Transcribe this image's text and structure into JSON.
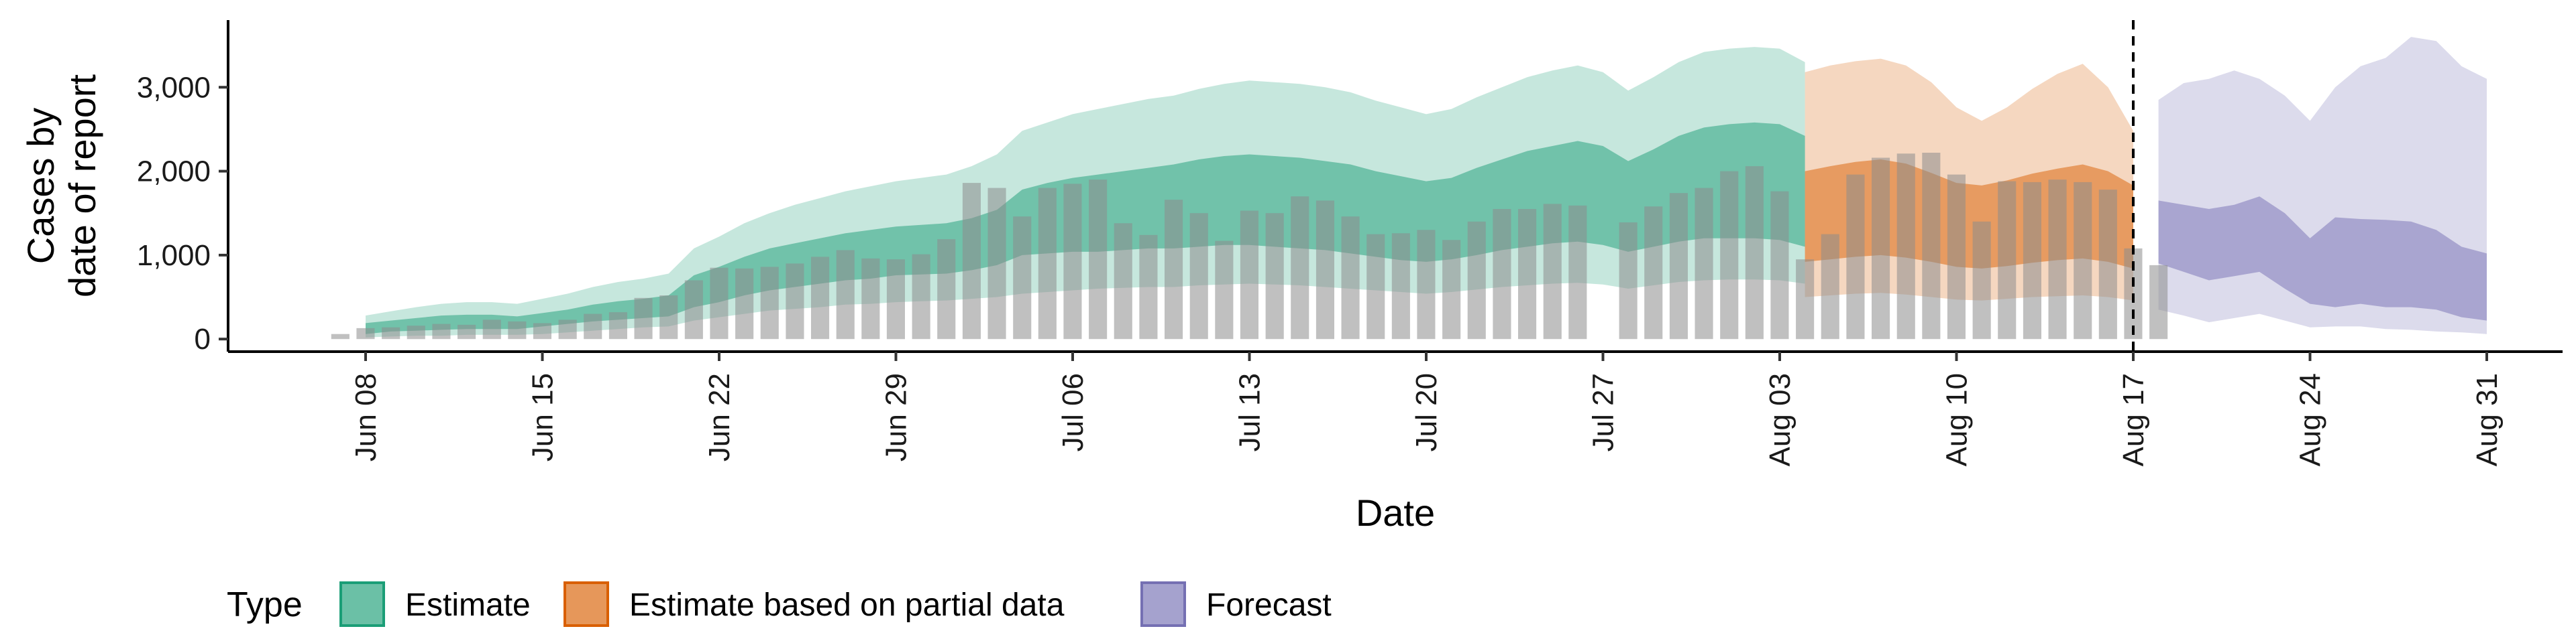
{
  "chart_data": {
    "type": "area",
    "title": "",
    "xlabel": "Date",
    "ylabel_lines": [
      "Cases by",
      "date of report"
    ],
    "x_tick_labels": [
      "Jun 08",
      "Jun 15",
      "Jun 22",
      "Jun 29",
      "Jul 06",
      "Jul 13",
      "Jul 20",
      "Jul 27",
      "Aug 03",
      "Aug 10",
      "Aug 17",
      "Aug 24",
      "Aug 31"
    ],
    "x_tick_day_index": [
      0,
      7,
      14,
      21,
      28,
      35,
      42,
      49,
      56,
      63,
      70,
      77,
      84
    ],
    "y_ticks": [
      0,
      1000,
      2000,
      3000
    ],
    "y_tick_labels": [
      "0",
      "1,000",
      "2,000",
      "3,000"
    ],
    "ylim": [
      -150,
      3800
    ],
    "vline_label_date": "Aug 17",
    "legend": {
      "title": "Type",
      "placement": "bottom",
      "entries": [
        {
          "label": "Estimate",
          "color": "#1b9e77"
        },
        {
          "label": "Estimate based on partial data",
          "color": "#d95f02"
        },
        {
          "label": "Forecast",
          "color": "#7570b3"
        }
      ]
    },
    "reported_cases": {
      "start_date": "Jun 07",
      "values": [
        60,
        130,
        140,
        160,
        180,
        170,
        230,
        210,
        190,
        230,
        300,
        320,
        490,
        520,
        700,
        850,
        840,
        860,
        900,
        980,
        1060,
        960,
        950,
        1010,
        1190,
        1860,
        1800,
        1460,
        1800,
        1850,
        1900,
        1380,
        1240,
        1660,
        1500,
        1170,
        1530,
        1500,
        1700,
        1650,
        1460,
        1250,
        1260,
        1300,
        1180,
        1400,
        1550,
        1550,
        1610,
        1590,
        0,
        1390,
        1580,
        1740,
        1800,
        2000,
        2060,
        1760,
        950,
        1250,
        1960,
        2160,
        2210,
        2220,
        1960,
        1400,
        1880,
        1870,
        1900,
        1870,
        1780,
        1080,
        880
      ]
    },
    "series": [
      {
        "name": "Estimate",
        "color": "#1b9e77",
        "start_date": "Jun 08",
        "median": [
          130,
          150,
          170,
          190,
          200,
          200,
          180,
          220,
          250,
          290,
          310,
          330,
          350,
          560,
          640,
          750,
          820,
          860,
          900,
          940,
          970,
          1010,
          1020,
          1040,
          1110,
          1200,
          1400,
          1460,
          1510,
          1520,
          1560,
          1600,
          1620,
          1680,
          1700,
          1720,
          1700,
          1680,
          1640,
          1600,
          1540,
          1480,
          1420,
          1460,
          1560,
          1640,
          1720,
          1780,
          1820,
          1760,
          1600,
          1720,
          1860,
          1950,
          1990,
          2000,
          1980,
          1860
        ],
        "band50_low": [
          60,
          90,
          100,
          110,
          120,
          120,
          120,
          150,
          180,
          210,
          230,
          250,
          270,
          380,
          440,
          520,
          580,
          620,
          660,
          700,
          720,
          760,
          770,
          780,
          820,
          880,
          1000,
          1020,
          1040,
          1040,
          1060,
          1080,
          1080,
          1100,
          1120,
          1120,
          1100,
          1080,
          1060,
          1020,
          980,
          940,
          920,
          950,
          1000,
          1060,
          1100,
          1140,
          1160,
          1120,
          1040,
          1100,
          1160,
          1200,
          1200,
          1200,
          1180,
          1100
        ],
        "band90_low": [
          20,
          30,
          40,
          40,
          50,
          50,
          50,
          60,
          80,
          100,
          120,
          140,
          150,
          220,
          260,
          300,
          340,
          360,
          380,
          410,
          420,
          440,
          450,
          460,
          480,
          500,
          540,
          560,
          580,
          600,
          610,
          620,
          620,
          640,
          650,
          660,
          650,
          640,
          620,
          600,
          580,
          560,
          540,
          560,
          590,
          620,
          640,
          660,
          670,
          650,
          600,
          640,
          680,
          700,
          710,
          710,
          700,
          660
        ],
        "band50_high": [
          190,
          220,
          250,
          280,
          290,
          290,
          270,
          310,
          350,
          410,
          450,
          480,
          520,
          760,
          860,
          980,
          1080,
          1140,
          1200,
          1260,
          1300,
          1340,
          1360,
          1380,
          1440,
          1540,
          1780,
          1860,
          1920,
          1960,
          2000,
          2040,
          2080,
          2140,
          2180,
          2200,
          2180,
          2160,
          2120,
          2080,
          2000,
          1940,
          1880,
          1920,
          2040,
          2140,
          2240,
          2300,
          2360,
          2300,
          2120,
          2260,
          2420,
          2520,
          2560,
          2580,
          2560,
          2420
        ],
        "band90_high": [
          280,
          330,
          380,
          420,
          440,
          440,
          420,
          480,
          540,
          620,
          680,
          720,
          780,
          1080,
          1220,
          1380,
          1500,
          1600,
          1680,
          1760,
          1820,
          1880,
          1920,
          1960,
          2060,
          2200,
          2480,
          2580,
          2680,
          2740,
          2800,
          2860,
          2900,
          2980,
          3040,
          3080,
          3060,
          3040,
          3000,
          2940,
          2840,
          2760,
          2680,
          2740,
          2880,
          3000,
          3120,
          3200,
          3260,
          3180,
          2960,
          3120,
          3300,
          3420,
          3460,
          3480,
          3460,
          3300
        ]
      },
      {
        "name": "Estimate based on partial data",
        "color": "#d95f02",
        "start_date": "Aug 04",
        "median": [
          1400,
          1440,
          1480,
          1500,
          1460,
          1380,
          1300,
          1280,
          1320,
          1380,
          1420,
          1460,
          1400,
          1280
        ],
        "band50_low": [
          920,
          950,
          980,
          1000,
          970,
          920,
          860,
          840,
          870,
          910,
          940,
          960,
          920,
          840
        ],
        "band90_low": [
          500,
          520,
          540,
          550,
          530,
          500,
          470,
          460,
          480,
          500,
          510,
          520,
          500,
          460
        ],
        "band50_high": [
          2000,
          2060,
          2110,
          2140,
          2090,
          1980,
          1860,
          1830,
          1890,
          1970,
          2030,
          2080,
          2000,
          1830
        ],
        "band90_high": [
          3180,
          3260,
          3310,
          3340,
          3260,
          3060,
          2760,
          2600,
          2760,
          2980,
          3160,
          3280,
          3000,
          2480
        ]
      },
      {
        "name": "Forecast",
        "color": "#7570b3",
        "start_date": "Aug 18",
        "median": [
          1300,
          1200,
          1100,
          1150,
          1250,
          1050,
          850,
          950,
          1000,
          980,
          920,
          850,
          700,
          600
        ],
        "band50_low": [
          900,
          800,
          700,
          750,
          800,
          600,
          420,
          380,
          420,
          380,
          380,
          350,
          260,
          220
        ],
        "band90_low": [
          350,
          280,
          200,
          250,
          300,
          220,
          140,
          150,
          150,
          120,
          110,
          90,
          80,
          60
        ],
        "band50_high": [
          1650,
          1600,
          1550,
          1600,
          1700,
          1500,
          1200,
          1450,
          1430,
          1420,
          1400,
          1300,
          1100,
          1020
        ],
        "band90_high": [
          2850,
          3050,
          3100,
          3200,
          3100,
          2900,
          2600,
          3000,
          3250,
          3350,
          3600,
          3550,
          3250,
          3100
        ]
      }
    ]
  }
}
